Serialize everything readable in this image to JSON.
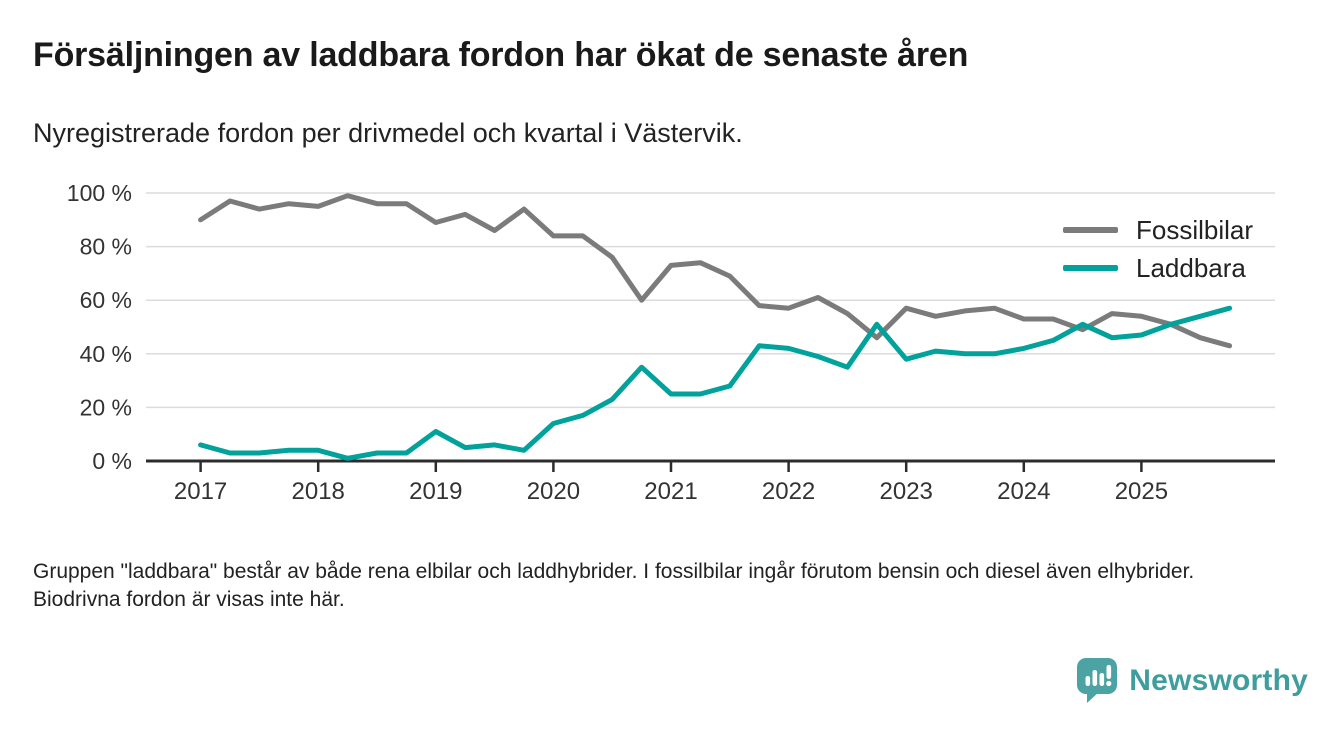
{
  "title": "Försäljningen av laddbara fordon har ökat de senaste åren",
  "subtitle": "Nyregistrerade fordon per drivmedel och kvartal i Västervik.",
  "footnote": "Gruppen \"laddbara\" består av både rena elbilar och laddhybrider. I fossilbilar ingår förutom bensin och diesel även elhybrider. Biodrivna fordon är visas inte här.",
  "branding": {
    "logo_text": "Newsworthy",
    "logo_icon": "speech-bubble-bar-chart",
    "logo_color": "#4ba4a3",
    "text_color": "#3f9e9d"
  },
  "colors": {
    "fossil": "#7b7b7b",
    "laddbara": "#00a29b",
    "gridline": "#dcdcdc",
    "axis": "#2c2c2c",
    "text": "#333333"
  },
  "chart_data": {
    "type": "line",
    "title": "Försäljningen av laddbara fordon har ökat de senaste åren",
    "subtitle": "Nyregistrerade fordon per drivmedel och kvartal i Västervik.",
    "unit": "%",
    "frequency": "quarterly",
    "grid": true,
    "legend_position": "top-right",
    "ylim": [
      0,
      100
    ],
    "y_ticks": [
      0,
      20,
      40,
      60,
      80,
      100
    ],
    "y_tick_labels": [
      "0 %",
      "20 %",
      "40 %",
      "60 %",
      "80 %",
      "100 %"
    ],
    "x_tick_labels": [
      "2017",
      "2018",
      "2019",
      "2020",
      "2021",
      "2022",
      "2023",
      "2024",
      "2025"
    ],
    "x": [
      "2017 Q1",
      "2017 Q2",
      "2017 Q3",
      "2017 Q4",
      "2018 Q1",
      "2018 Q2",
      "2018 Q3",
      "2018 Q4",
      "2019 Q1",
      "2019 Q2",
      "2019 Q3",
      "2019 Q4",
      "2020 Q1",
      "2020 Q2",
      "2020 Q3",
      "2020 Q4",
      "2021 Q1",
      "2021 Q2",
      "2021 Q3",
      "2021 Q4",
      "2022 Q1",
      "2022 Q2",
      "2022 Q3",
      "2022 Q4",
      "2023 Q1",
      "2023 Q2",
      "2023 Q3",
      "2023 Q4",
      "2024 Q1",
      "2024 Q2",
      "2024 Q3",
      "2024 Q4",
      "2025 Q1",
      "2025 Q2",
      "2025 Q3",
      "2025 Q4"
    ],
    "series": [
      {
        "name": "Fossilbilar",
        "color": "#7b7b7b",
        "values": [
          90,
          97,
          94,
          96,
          95,
          99,
          96,
          96,
          89,
          92,
          86,
          94,
          84,
          84,
          76,
          60,
          73,
          74,
          69,
          58,
          57,
          61,
          55,
          46,
          57,
          54,
          56,
          57,
          53,
          53,
          49,
          55,
          54,
          51,
          46,
          43
        ]
      },
      {
        "name": "Laddbara",
        "color": "#00a29b",
        "values": [
          6,
          3,
          3,
          4,
          4,
          1,
          3,
          3,
          11,
          5,
          6,
          4,
          14,
          17,
          23,
          35,
          25,
          25,
          28,
          43,
          42,
          39,
          35,
          51,
          38,
          41,
          40,
          40,
          42,
          45,
          51,
          46,
          47,
          51,
          54,
          57
        ]
      }
    ]
  }
}
